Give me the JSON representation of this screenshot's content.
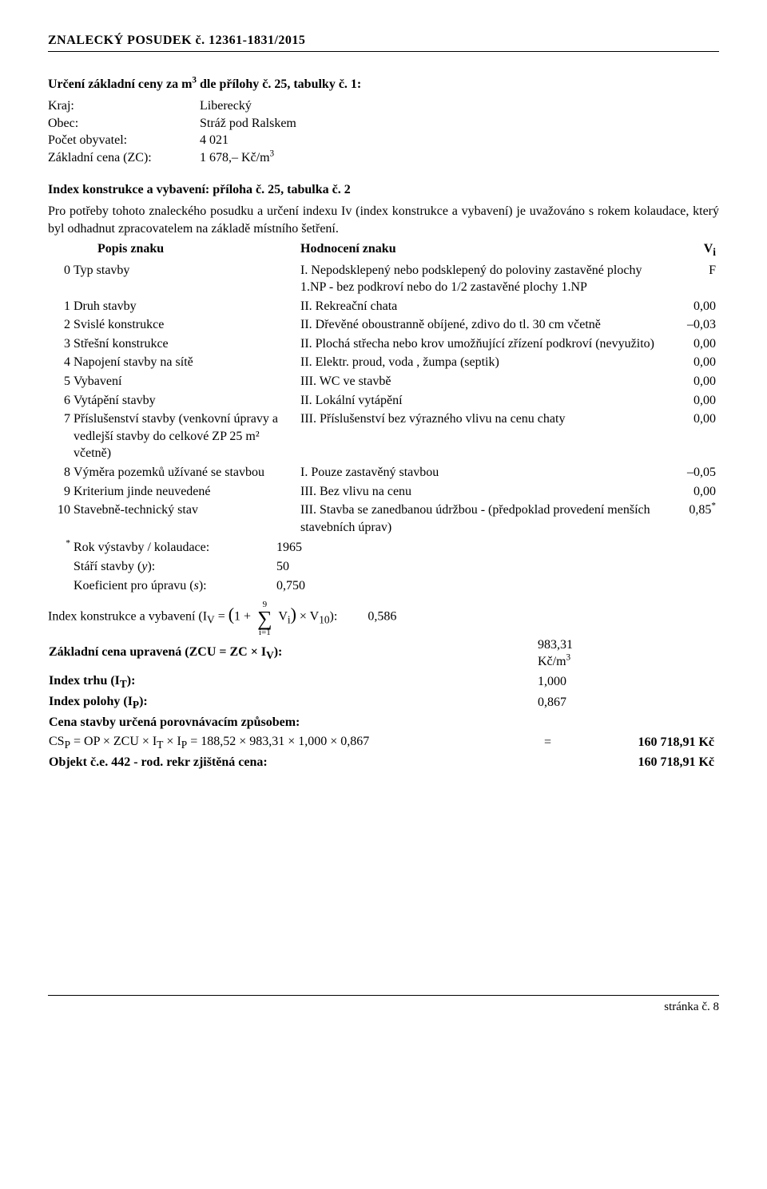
{
  "header": "ZNALECKÝ   POSUDEK č. 12361-1831/2015",
  "section1_title_pre": "Určení základní ceny za m",
  "section1_title_sup": "3",
  "section1_title_post": " dle přílohy č. 25, tabulky č. 1:",
  "kv": [
    {
      "label": "Kraj:",
      "value": "Liberecký"
    },
    {
      "label": "Obec:",
      "value": "Stráž pod Ralskem"
    },
    {
      "label": "Počet obyvatel:",
      "value": "4 021"
    }
  ],
  "zc_label": "Základní cena (ZC):",
  "zc_value_pre": "1 678,–  Kč/m",
  "zc_value_sup": "3",
  "ikv_title": "Index konstrukce a vybavení: příloha č. 25, tabulka č. 2",
  "paragraph": "Pro potřeby tohoto znaleckého posudku a určení indexu Iv (index konstrukce a vybavení) je uvažováno s rokem kolaudace, který byl odhadnut zpracovatelem na základě místního šetření.",
  "cols": {
    "popis": "Popis znaku",
    "hodnoceni": "Hodnocení znaku",
    "vi_pre": "V",
    "vi_sub": "i"
  },
  "rows": [
    {
      "n": "0",
      "popis": "Typ stavby",
      "hod": "I. Nepodsklepený nebo podsklepený do poloviny zastavěné plochy 1.NP - bez podkroví nebo do 1/2 zastavěné plochy 1.NP",
      "vi": "F"
    },
    {
      "n": "1",
      "popis": "Druh stavby",
      "hod": "II. Rekreační chata",
      "vi": "0,00"
    },
    {
      "n": "2",
      "popis": "Svislé konstrukce",
      "hod": "II. Dřevěné oboustranně obíjené, zdivo do tl. 30 cm včetně",
      "vi": "–0,03"
    },
    {
      "n": "3",
      "popis": "Střešní konstrukce",
      "hod": "II. Plochá střecha nebo krov umožňující zřízení podkroví (nevyužito)",
      "vi": "0,00"
    },
    {
      "n": "4",
      "popis": "Napojení stavby na sítě",
      "hod": "II. Elektr. proud, voda , žumpa (septik)",
      "vi": "0,00"
    },
    {
      "n": "5",
      "popis": "Vybavení",
      "hod": "III. WC ve stavbě",
      "vi": "0,00"
    },
    {
      "n": "6",
      "popis": "Vytápění stavby",
      "hod": "II. Lokální vytápění",
      "vi": "0,00"
    },
    {
      "n": "7",
      "popis": "Příslušenství stavby (venkovní úpravy a vedlejší stavby do celkové ZP 25 m² včetně)",
      "hod": "III. Příslušenství bez výrazného vlivu na cenu chaty",
      "vi": "0,00"
    },
    {
      "n": "8",
      "popis": "Výměra pozemků užívané se stavbou",
      "hod": "I. Pouze zastavěný stavbou",
      "vi": "–0,05"
    },
    {
      "n": "9",
      "popis": "Kriterium jinde neuvedené",
      "hod": "III. Bez vlivu na cenu",
      "vi": "0,00"
    },
    {
      "n": "10",
      "popis": "Stavebně-technický stav",
      "hod": "III. Stavba se zanedbanou údržbou - (předpoklad provedení menších stavebních úprav)",
      "vi": "0,85",
      "vi_sup": "*"
    }
  ],
  "footrows": [
    {
      "label_pre": "*",
      "label": " Rok výstavby / kolaudace:",
      "val": "1965"
    },
    {
      "label": "Stáří stavby (",
      "label_ital": "y",
      "label_post": "):",
      "val": "50"
    },
    {
      "label": "Koeficient pro úpravu (",
      "label_ital": "s",
      "label_post": "):",
      "val": "0,750"
    }
  ],
  "formula_label": "Index konstrukce a vybavení   (I",
  "formula_sub": "V",
  "formula_eq": " = ",
  "formula_open": "(",
  "formula_one": "1 + ",
  "sum_top": "9",
  "sum_bot": "i=1",
  "formula_vi": " V",
  "formula_vi_sub": "i",
  "formula_close": ")",
  "formula_v10": " × V",
  "formula_v10_sub": "10",
  "formula_end": "):",
  "formula_result": "0,586",
  "res": [
    {
      "label_html": "Základní cena upravená (ZCU = ZC × I<sub>V</sub>):",
      "val": "983,31 Kč/m",
      "sup": "3",
      "bold": true
    },
    {
      "label_html": "Index trhu (I<sub>T</sub>):",
      "val": "1,000",
      "bold": true
    },
    {
      "label_html": "Index polohy (I<sub>P</sub>):",
      "val": "0,867",
      "bold": true
    },
    {
      "label_html": "Cena stavby určená porovnávacím způsobem:",
      "val": "",
      "bold": true
    }
  ],
  "csp_line": "CS<sub>P</sub> = OP × ZCU × I<sub>T</sub> × I<sub>P</sub> = 188,52 × 983,31 × 1,000 × 0,867",
  "csp_eq": "=",
  "csp_val": "160 718,91 Kč",
  "final_label": "Objekt č.e. 442 - rod. rekr zjištěná cena:",
  "final_val": "160 718,91 Kč",
  "footer": "stránka č.  8"
}
